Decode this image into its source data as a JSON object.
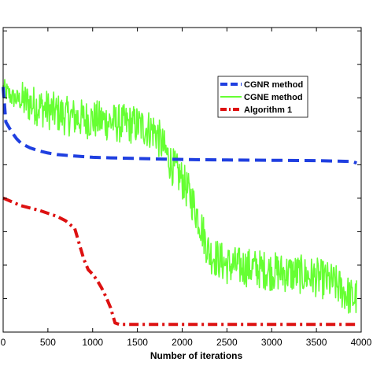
{
  "chart_data": {
    "type": "line",
    "title": "",
    "xlabel": "Number of iterations",
    "ylabel": "",
    "xlim": [
      0,
      4000
    ],
    "ylim": [
      0,
      10
    ],
    "x_ticks": [
      0,
      500,
      1000,
      1500,
      2000,
      2500,
      3000,
      3500,
      4000
    ],
    "grid": false,
    "legend_position": "top-right",
    "series": [
      {
        "name": "CGNR method",
        "color": "#1f3fe0",
        "style": "dashed",
        "x": [
          0,
          30,
          60,
          100,
          150,
          200,
          300,
          400,
          500,
          600,
          800,
          1000,
          1200,
          1500,
          1800,
          2000,
          2200,
          2500,
          3000,
          3500,
          3900,
          3950
        ],
        "y": [
          8.05,
          6.9,
          6.75,
          6.55,
          6.35,
          6.2,
          6.05,
          5.95,
          5.88,
          5.83,
          5.78,
          5.74,
          5.72,
          5.7,
          5.68,
          5.67,
          5.66,
          5.65,
          5.64,
          5.63,
          5.6,
          5.55
        ]
      },
      {
        "name": "CGNE method",
        "color": "#66ff33",
        "style": "solid",
        "noise": true,
        "x": [
          0,
          100,
          300,
          500,
          700,
          900,
          1100,
          1300,
          1500,
          1700,
          1800,
          1900,
          2000,
          2100,
          2200,
          2300,
          2500,
          2800,
          3000,
          3300,
          3500,
          3700,
          3900,
          3950
        ],
        "y": [
          8.0,
          7.7,
          7.5,
          7.3,
          7.1,
          7.0,
          6.95,
          6.85,
          6.8,
          6.6,
          6.0,
          5.4,
          5.0,
          4.4,
          3.6,
          2.6,
          2.2,
          2.1,
          2.0,
          1.9,
          1.8,
          1.6,
          1.1,
          1.15
        ]
      },
      {
        "name": "Algorithm 1",
        "color": "#dd1111",
        "style": "dashdot",
        "x": [
          0,
          200,
          400,
          600,
          700,
          800,
          850,
          900,
          950,
          1000,
          1050,
          1100,
          1150,
          1200,
          1250,
          1300,
          1500,
          2000,
          2500,
          3000,
          3500,
          3950
        ],
        "y": [
          4.4,
          4.15,
          4.0,
          3.8,
          3.65,
          3.4,
          2.9,
          2.4,
          2.05,
          1.9,
          1.7,
          1.45,
          1.15,
          0.8,
          0.3,
          0.25,
          0.25,
          0.25,
          0.25,
          0.25,
          0.25,
          0.25
        ]
      }
    ]
  }
}
